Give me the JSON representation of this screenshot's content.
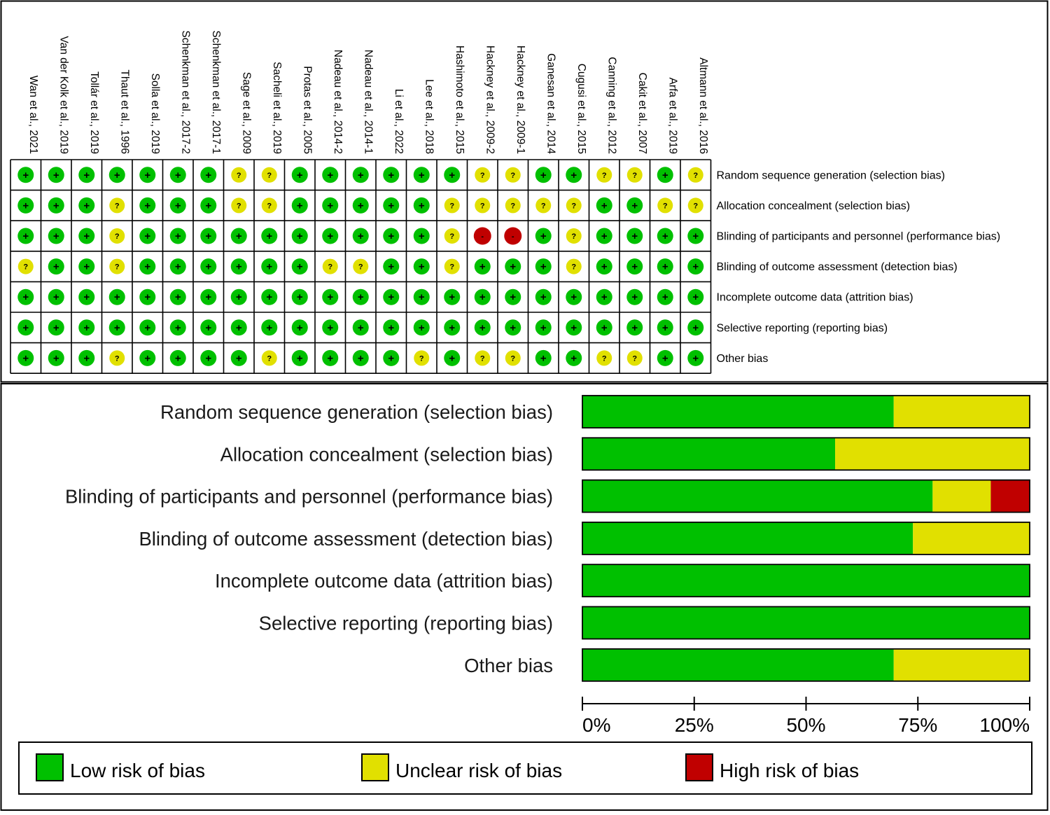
{
  "colors": {
    "low": "#00c000",
    "unclear": "#e1e000",
    "high": "#c00000",
    "border": "#000000"
  },
  "chart_data": [
    {
      "type": "table",
      "title": "",
      "studies": [
        "Wan et al., 2021",
        "Van der Kolk et al., 2019",
        "Tollár et al., 2019",
        "Thaut et al., 1996",
        "Solla et al., 2019",
        "Schenkman et al., 2017-2",
        "Schenkman et al., 2017-1",
        "Sage et al., 2009",
        "Sacheli et al., 2019",
        "Protas et al., 2005",
        "Nadeau et al., 2014-2",
        "Nadeau et al., 2014-1",
        "Li et al., 2022",
        "Lee et al., 2018",
        "Hashimoto et al., 2015",
        "Hackney et al., 2009-2",
        "Hackney et al., 2009-1",
        "Ganesan et al., 2014",
        "Cugusi et al., 2015",
        "Canning et al., 2012",
        "Cakit et al., 2007",
        "Arfa et al., 2019",
        "Altmann et al., 2016"
      ],
      "domains": [
        "Random sequence generation (selection bias)",
        "Allocation concealment (selection bias)",
        "Blinding of participants and personnel (performance bias)",
        "Blinding of outcome assessment (detection bias)",
        "Incomplete outcome data (attrition bias)",
        "Selective reporting (reporting bias)",
        "Other bias"
      ],
      "symbols": {
        "low": "+",
        "unclear": "?",
        "high": "-"
      },
      "judgements": [
        [
          "low",
          "low",
          "low",
          "low",
          "low",
          "low",
          "low",
          "unclear",
          "unclear",
          "low",
          "low",
          "low",
          "low",
          "low",
          "low",
          "unclear",
          "unclear",
          "low",
          "low",
          "unclear",
          "unclear",
          "low",
          "unclear"
        ],
        [
          "low",
          "low",
          "low",
          "unclear",
          "low",
          "low",
          "low",
          "unclear",
          "unclear",
          "low",
          "low",
          "low",
          "low",
          "low",
          "unclear",
          "unclear",
          "unclear",
          "unclear",
          "unclear",
          "low",
          "low",
          "unclear",
          "unclear"
        ],
        [
          "low",
          "low",
          "low",
          "unclear",
          "low",
          "low",
          "low",
          "low",
          "low",
          "low",
          "low",
          "low",
          "low",
          "low",
          "unclear",
          "high",
          "high",
          "low",
          "unclear",
          "low",
          "low",
          "low",
          "low"
        ],
        [
          "unclear",
          "low",
          "low",
          "unclear",
          "low",
          "low",
          "low",
          "low",
          "low",
          "low",
          "unclear",
          "unclear",
          "low",
          "low",
          "unclear",
          "low",
          "low",
          "low",
          "unclear",
          "low",
          "low",
          "low",
          "low"
        ],
        [
          "low",
          "low",
          "low",
          "low",
          "low",
          "low",
          "low",
          "low",
          "low",
          "low",
          "low",
          "low",
          "low",
          "low",
          "low",
          "low",
          "low",
          "low",
          "low",
          "low",
          "low",
          "low",
          "low"
        ],
        [
          "low",
          "low",
          "low",
          "low",
          "low",
          "low",
          "low",
          "low",
          "low",
          "low",
          "low",
          "low",
          "low",
          "low",
          "low",
          "low",
          "low",
          "low",
          "low",
          "low",
          "low",
          "low",
          "low"
        ],
        [
          "low",
          "low",
          "low",
          "unclear",
          "low",
          "low",
          "low",
          "low",
          "unclear",
          "low",
          "low",
          "low",
          "low",
          "unclear",
          "low",
          "unclear",
          "unclear",
          "low",
          "low",
          "unclear",
          "unclear",
          "low",
          "low"
        ]
      ]
    },
    {
      "type": "bar",
      "orientation": "horizontal-stacked",
      "title": "",
      "categories": [
        "Random sequence generation (selection bias)",
        "Allocation concealment (selection bias)",
        "Blinding of participants and personnel (performance bias)",
        "Blinding of outcome assessment (detection bias)",
        "Incomplete outcome data (attrition bias)",
        "Selective reporting (reporting bias)",
        "Other bias"
      ],
      "series": [
        {
          "name": "Low risk of bias",
          "key": "low",
          "values": [
            69.6,
            56.5,
            78.3,
            73.9,
            100,
            100,
            69.6
          ]
        },
        {
          "name": "Unclear risk of bias",
          "key": "unclear",
          "values": [
            30.4,
            43.5,
            13.0,
            26.1,
            0,
            0,
            30.4
          ]
        },
        {
          "name": "High risk of bias",
          "key": "high",
          "values": [
            0,
            0,
            8.7,
            0,
            0,
            0,
            0
          ]
        }
      ],
      "xlim": [
        0,
        100
      ],
      "xticks": [
        "0%",
        "25%",
        "50%",
        "75%",
        "100%"
      ],
      "xlabel": "",
      "ylabel": "",
      "grid": false,
      "legend": "bottom"
    }
  ],
  "legend": {
    "low": "Low risk of bias",
    "unclear": "Unclear risk of bias",
    "high": "High risk of bias"
  }
}
